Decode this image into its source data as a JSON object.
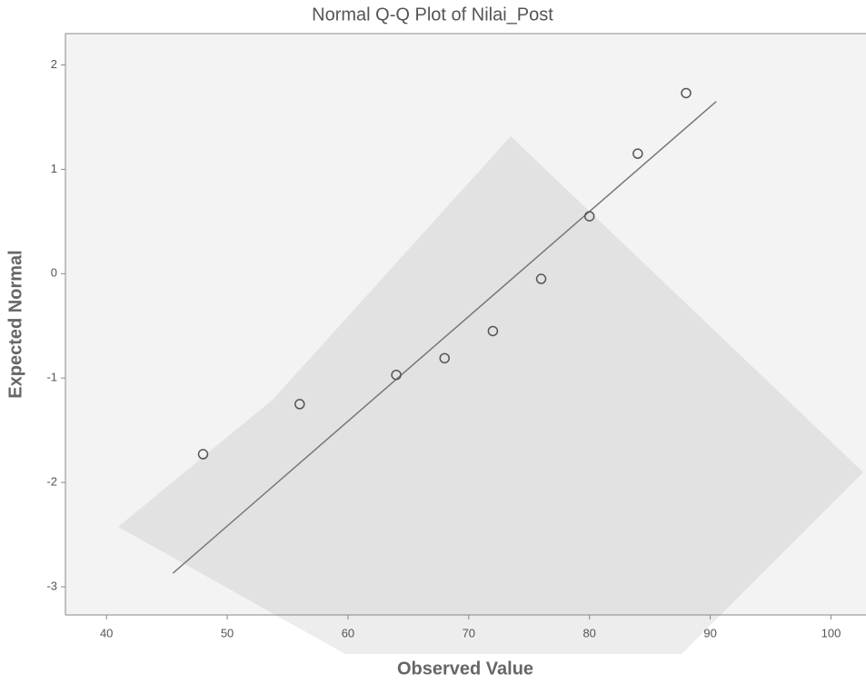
{
  "chart_data": {
    "type": "scatter",
    "title": "Normal Q-Q Plot of Nilai_Post",
    "x_label": "Observed Value",
    "y_label": "Expected Normal",
    "x": [
      48,
      56,
      64,
      68,
      72,
      76,
      80,
      84,
      88
    ],
    "values": [
      -1.73,
      -1.25,
      -0.97,
      -0.81,
      -0.55,
      -0.05,
      0.55,
      1.15,
      1.73
    ],
    "color": "#555555",
    "reference_line": {
      "x": [
        45.5,
        90.5
      ],
      "y": [
        -2.87,
        1.65
      ],
      "color": "#777777"
    },
    "xlim": [
      36.6,
      102.9
    ],
    "ylim": [
      -3.27,
      2.3
    ],
    "xticks": [
      40,
      50,
      60,
      70,
      80,
      90,
      100
    ],
    "yticks": [
      -3,
      -2,
      -1,
      0,
      1,
      2
    ]
  }
}
